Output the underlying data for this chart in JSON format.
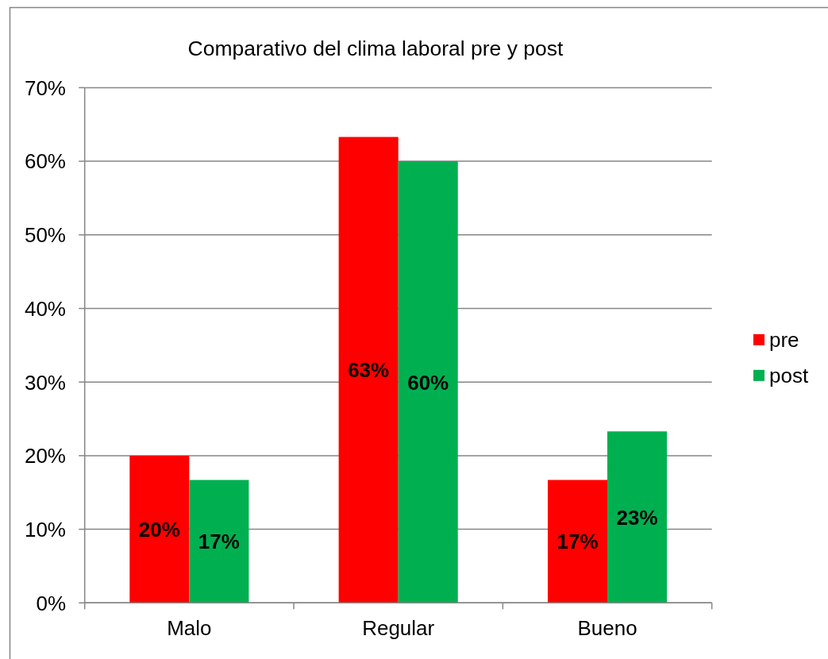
{
  "chart_data": {
    "type": "bar",
    "title": "Comparativo del clima laboral pre y post",
    "categories": [
      "Malo",
      "Regular",
      "Bueno"
    ],
    "series": [
      {
        "name": "pre",
        "color": "#ff0000",
        "values": [
          20,
          63.3,
          16.7
        ],
        "value_labels": [
          "20%",
          "63%",
          "17%"
        ]
      },
      {
        "name": "post",
        "color": "#00b050",
        "values": [
          16.7,
          60,
          23.3
        ],
        "value_labels": [
          "17%",
          "60%",
          "23%"
        ]
      }
    ],
    "ylim": [
      0,
      70
    ],
    "yticks": [
      {
        "value": 0,
        "label": "0%"
      },
      {
        "value": 10,
        "label": "10%"
      },
      {
        "value": 20,
        "label": "20%"
      },
      {
        "value": 30,
        "label": "30%"
      },
      {
        "value": 40,
        "label": "40%"
      },
      {
        "value": 50,
        "label": "50%"
      },
      {
        "value": 60,
        "label": "60%"
      },
      {
        "value": 70,
        "label": "70%"
      }
    ],
    "grid": "y",
    "legend": "right"
  }
}
